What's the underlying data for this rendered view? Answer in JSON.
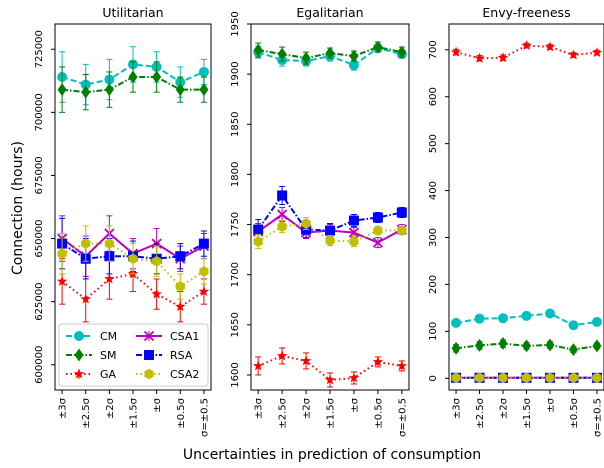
{
  "figure": {
    "ylabel": "Connection (hours)",
    "xlabel": "Uncertainties in prediction of consumption"
  },
  "legend": {
    "columns": [
      [
        "CM",
        "SM",
        "GA"
      ],
      [
        "CSA1",
        "RSA",
        "CSA2"
      ]
    ]
  },
  "series_styles": {
    "CM": {
      "color": "#00bfbf",
      "marker": "circle",
      "dash": "6,3"
    },
    "SM": {
      "color": "#008000",
      "marker": "diamond",
      "dash": "6,2,1.5,2"
    },
    "GA": {
      "color": "#ff0000",
      "marker": "star",
      "dash": "1.5,3"
    },
    "CSA1": {
      "color": "#bf00bf",
      "marker": "x",
      "dash": "none"
    },
    "RSA": {
      "color": "#0000ff",
      "marker": "square",
      "dash": "6,2,1.5,2"
    },
    "CSA2": {
      "color": "#bfbf00",
      "marker": "hexagon",
      "dash": "1.5,3"
    }
  },
  "chart_data": [
    {
      "type": "line",
      "title": "Utilitarian",
      "categories": [
        "±3σ",
        "±2.5σ",
        "±2σ",
        "±1.5σ",
        "±σ",
        "±0.5σ",
        "σ=±0.5"
      ],
      "ylim": [
        590000,
        735000
      ],
      "yticks": [
        600000,
        625000,
        650000,
        675000,
        700000,
        725000
      ],
      "legend_position": "lower-left",
      "series": [
        {
          "name": "CM",
          "values": [
            714000,
            711000,
            713000,
            719000,
            718000,
            712000,
            716000
          ],
          "err": [
            10000,
            8000,
            8000,
            7000,
            6000,
            6000,
            5000
          ]
        },
        {
          "name": "SM",
          "values": [
            709000,
            708000,
            709000,
            714000,
            714000,
            709000,
            709000
          ],
          "err": [
            9000,
            7000,
            7000,
            6000,
            6000,
            5000,
            5000
          ]
        },
        {
          "name": "GA",
          "values": [
            633000,
            626000,
            634000,
            636000,
            628000,
            623000,
            629000
          ],
          "err": [
            9000,
            9000,
            8000,
            7000,
            6000,
            6000,
            5000
          ]
        },
        {
          "name": "CSA1",
          "values": [
            650000,
            643000,
            652000,
            644000,
            648000,
            642000,
            647000
          ],
          "err": [
            9000,
            8000,
            7000,
            6000,
            6000,
            5000,
            5000
          ]
        },
        {
          "name": "RSA",
          "values": [
            648000,
            642000,
            643000,
            643000,
            642000,
            643000,
            648000
          ],
          "err": [
            10000,
            8000,
            7000,
            6000,
            6000,
            5000,
            5000
          ]
        },
        {
          "name": "CSA2",
          "values": [
            644000,
            648000,
            648000,
            642000,
            641000,
            631000,
            637000
          ],
          "err": [
            8000,
            7000,
            7000,
            6000,
            6000,
            5000,
            5000
          ]
        }
      ]
    },
    {
      "type": "line",
      "title": "Egalitarian",
      "categories": [
        "±3σ",
        "±2.5σ",
        "±2σ",
        "±1.5σ",
        "±σ",
        "±0.5σ",
        "σ=±0.5"
      ],
      "ylim": [
        1585,
        1950
      ],
      "yticks": [
        1600,
        1650,
        1700,
        1750,
        1800,
        1850,
        1900,
        1950
      ],
      "series": [
        {
          "name": "CM",
          "values": [
            1922,
            1914,
            1913,
            1918,
            1909,
            1926,
            1920
          ],
          "err": [
            6,
            6,
            5,
            5,
            5,
            4,
            4
          ]
        },
        {
          "name": "SM",
          "values": [
            1924,
            1920,
            1916,
            1921,
            1918,
            1927,
            1922
          ],
          "err": [
            7,
            7,
            6,
            5,
            5,
            5,
            5
          ]
        },
        {
          "name": "GA",
          "values": [
            1609,
            1619,
            1614,
            1595,
            1597,
            1613,
            1609
          ],
          "err": [
            9,
            8,
            8,
            7,
            6,
            5,
            5
          ]
        },
        {
          "name": "CSA1",
          "values": [
            1743,
            1760,
            1742,
            1744,
            1742,
            1732,
            1745
          ],
          "err": [
            8,
            7,
            6,
            6,
            5,
            5,
            5
          ]
        },
        {
          "name": "RSA",
          "values": [
            1745,
            1779,
            1745,
            1744,
            1754,
            1757,
            1762
          ],
          "err": [
            10,
            9,
            8,
            7,
            6,
            5,
            5
          ]
        },
        {
          "name": "CSA2",
          "values": [
            1733,
            1748,
            1751,
            1734,
            1733,
            1744,
            1744
          ],
          "err": [
            7,
            6,
            6,
            5,
            5,
            4,
            4
          ]
        }
      ]
    },
    {
      "type": "line",
      "title": "Envy-freeness",
      "categories": [
        "±3σ",
        "±2.5σ",
        "±2σ",
        "±1.5σ",
        "±σ",
        "±0.5σ",
        "σ=±0.5"
      ],
      "ylim": [
        -25,
        755
      ],
      "yticks": [
        0,
        100,
        200,
        300,
        400,
        500,
        600,
        700
      ],
      "series": [
        {
          "name": "CM",
          "values": [
            118,
            127,
            128,
            133,
            138,
            113,
            120
          ],
          "err": [
            5,
            5,
            5,
            5,
            5,
            5,
            5
          ]
        },
        {
          "name": "SM",
          "values": [
            64,
            70,
            74,
            69,
            71,
            61,
            69
          ],
          "err": [
            8,
            8,
            8,
            7,
            7,
            6,
            6
          ]
        },
        {
          "name": "GA",
          "values": [
            695,
            682,
            683,
            709,
            706,
            689,
            694
          ],
          "err": [
            6,
            6,
            6,
            5,
            5,
            5,
            5
          ]
        },
        {
          "name": "CSA1",
          "values": [
            1,
            1,
            1,
            1,
            1,
            1,
            1
          ],
          "err": [
            0,
            0,
            0,
            0,
            0,
            0,
            0
          ]
        },
        {
          "name": "RSA",
          "values": [
            1,
            1,
            1,
            1,
            1,
            1,
            1
          ],
          "err": [
            0,
            0,
            0,
            0,
            0,
            0,
            0
          ]
        },
        {
          "name": "CSA2",
          "values": [
            1,
            1,
            1,
            1,
            1,
            1,
            1
          ],
          "err": [
            0,
            0,
            0,
            0,
            0,
            0,
            0
          ]
        }
      ]
    }
  ]
}
